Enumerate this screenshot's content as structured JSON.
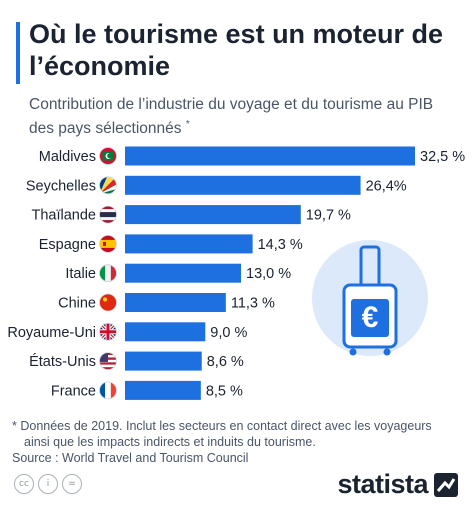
{
  "header": {
    "title": "Où le tourisme est un moteur de l’économie",
    "subtitle": "Contribution de l’industrie du voyage et du tourisme au PIB des pays sélectionnés",
    "subtitle_marker": "*"
  },
  "chart_data": {
    "type": "bar",
    "orientation": "horizontal",
    "categories": [
      "Maldives",
      "Seychelles",
      "Thaïlande",
      "Espagne",
      "Italie",
      "Chine",
      "Royaume-Uni",
      "États-Unis",
      "France"
    ],
    "values": [
      32.5,
      26.4,
      19.7,
      14.3,
      13.0,
      11.3,
      9.0,
      8.6,
      8.5
    ],
    "value_labels": [
      "32,5 %",
      "26,4%",
      "19,7 %",
      "14,3 %",
      "13,0 %",
      "11,3 %",
      "9,0 %",
      "8,6 %",
      "8,5 %"
    ],
    "flags": [
      "maldives-flag-icon",
      "seychelles-flag-icon",
      "thailand-flag-icon",
      "spain-flag-icon",
      "italy-flag-icon",
      "china-flag-icon",
      "uk-flag-icon",
      "usa-flag-icon",
      "france-flag-icon"
    ],
    "bar_color": "#1e6fe0",
    "xlim": [
      0,
      32.5
    ],
    "grid": false
  },
  "illustration": {
    "icon": "suitcase-euro-icon",
    "symbol": "€",
    "circle_color": "#dce9fb",
    "stroke_color": "#1e6fe0"
  },
  "footnote": {
    "line1": "* Données de 2019. Inclut les secteurs en contact direct avec les voyageurs",
    "line2": "ainsi que les impacts indirects et induits du tourisme.",
    "source": "Source : World Travel and Tourism Council"
  },
  "footer": {
    "license_icons": [
      "cc",
      "i",
      "="
    ],
    "brand": "statista"
  }
}
